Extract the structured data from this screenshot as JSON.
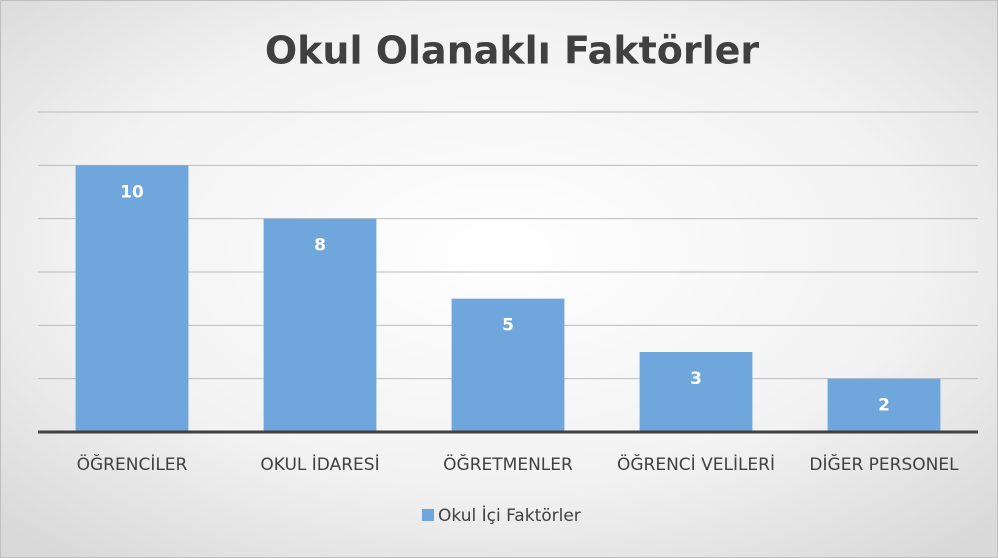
{
  "chart_data": {
    "type": "bar",
    "title": "Okul Olanaklı Faktörler",
    "categories": [
      "ÖĞRENCİLER",
      "OKUL İDARESİ",
      "ÖĞRETMENLER",
      "ÖĞRENCİ VELİLERİ",
      "DİĞER PERSONEL"
    ],
    "series": [
      {
        "name": "Okul İçi Faktörler",
        "color": "#6fa6dc",
        "values": [
          10,
          8,
          5,
          3,
          2
        ]
      }
    ],
    "ylim": [
      0,
      12
    ],
    "yticks": [
      0,
      2,
      4,
      6,
      8,
      10,
      12
    ],
    "grid": true,
    "legend": "bottom"
  }
}
